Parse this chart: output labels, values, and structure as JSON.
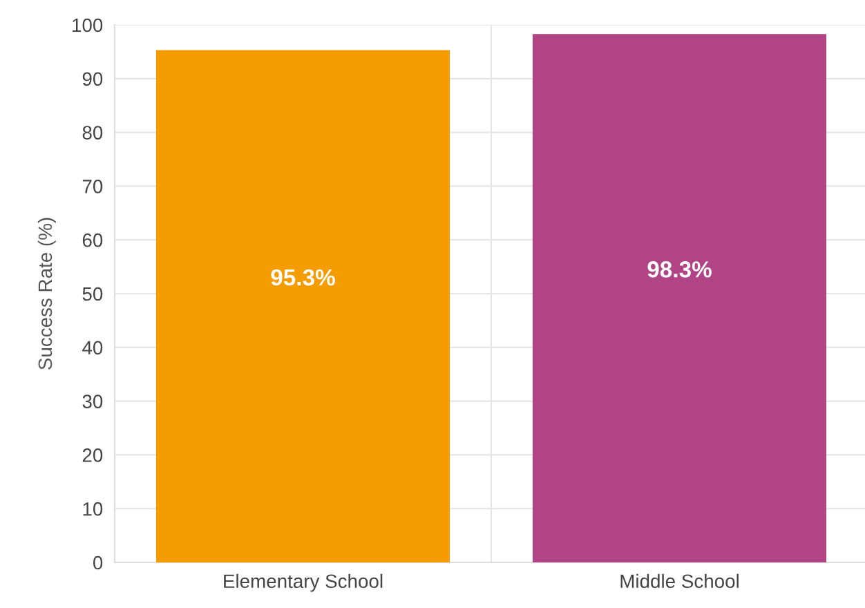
{
  "chart_data": {
    "type": "bar",
    "ylabel": "Success Rate (%)",
    "categories": [
      "Elementary School",
      "Middle School"
    ],
    "values": [
      95.3,
      98.3
    ],
    "colors": [
      "#f59c00",
      "#b04485"
    ],
    "value_labels": [
      "95.3%",
      "98.3%"
    ],
    "ylim": [
      0,
      100
    ],
    "yticks": [
      0,
      10,
      20,
      30,
      40,
      50,
      60,
      70,
      80,
      90,
      100
    ],
    "grid": true
  }
}
